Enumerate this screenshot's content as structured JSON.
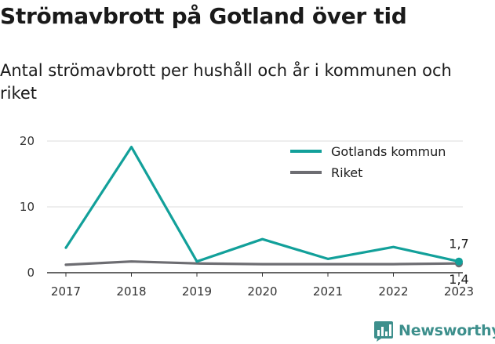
{
  "header": {
    "title": "Strömavbrott på Gotland över tid",
    "subtitle": "Antal strömavbrott per hushåll och år i kommunen och riket"
  },
  "brand": {
    "name": "Newsworthy",
    "icon": "newsworthy-logo-icon",
    "color": "#3d8f8c"
  },
  "chart_data": {
    "type": "line",
    "title": "Strömavbrott på Gotland över tid",
    "subtitle": "Antal strömavbrott per hushåll och år i kommunen och riket",
    "x": [
      "2017",
      "2018",
      "2019",
      "2020",
      "2021",
      "2022",
      "2023"
    ],
    "xlabel": "",
    "ylabel": "",
    "ylim": [
      0,
      20
    ],
    "yticks": [
      0,
      10,
      20
    ],
    "grid": true,
    "legend": "top-right",
    "series": [
      {
        "name": "Gotlands kommun",
        "color": "#12a09a",
        "values": [
          3.8,
          19.1,
          1.7,
          5.1,
          2.1,
          3.9,
          1.7
        ]
      },
      {
        "name": "Riket",
        "color": "#6d6d72",
        "values": [
          1.2,
          1.7,
          1.4,
          1.3,
          1.3,
          1.3,
          1.4
        ]
      }
    ],
    "annotations": [
      {
        "series": "Gotlands kommun",
        "x": "2023",
        "text": "1,7",
        "position": "above"
      },
      {
        "series": "Riket",
        "x": "2023",
        "text": "1,4",
        "position": "below"
      }
    ]
  }
}
